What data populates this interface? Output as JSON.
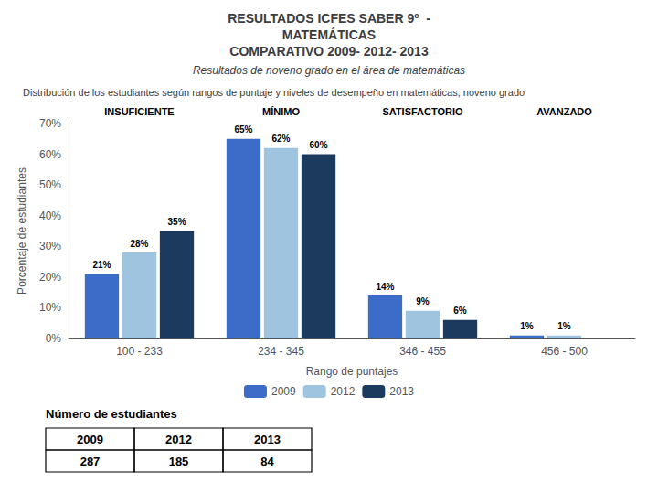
{
  "chart_data": {
    "type": "bar",
    "title": "RESULTADOS ICFES SABER 9º  -\nMATEMÁTICAS\nCOMPARATIVO 2009- 2012- 2013",
    "subtitle": "Resultados de noveno grado en el área de matemáticas",
    "annotations": [
      {
        "text": "Distribución de los estudiantes según rangos de puntaje y niveles de desempeño en matemáticas, noveno grado"
      },
      {
        "x": "100 - 233",
        "text": "INSUFICIENTE"
      },
      {
        "x": "234 - 345",
        "text": "MÍNIMO"
      },
      {
        "x": "346 - 455",
        "text": "SATISFACTORIO"
      },
      {
        "x": "456 - 500",
        "text": "AVANZADO"
      }
    ],
    "categories": [
      "100 - 233",
      "234 - 345",
      "346 - 455",
      "456 - 500"
    ],
    "series": [
      {
        "name": "2009",
        "color": "#3B6CC8",
        "values": [
          21,
          65,
          14,
          1
        ],
        "value_labels": [
          "21%",
          "65%",
          "14%",
          "1%"
        ]
      },
      {
        "name": "2012",
        "color": "#9EC4E0",
        "values": [
          28,
          62,
          9,
          1
        ],
        "value_labels": [
          "28%",
          "62%",
          "9%",
          "1%"
        ]
      },
      {
        "name": "2013",
        "color": "#1B3A5E",
        "values": [
          35,
          60,
          6,
          0
        ],
        "value_labels": [
          "35%",
          "60%",
          "6%",
          null
        ]
      }
    ],
    "xlabel": "Rango de puntajes",
    "ylabel": "Porcentaje de estudiantes",
    "ylim": [
      0,
      70
    ],
    "yticks": [
      {
        "value": 0,
        "label": "0%"
      },
      {
        "value": 10,
        "label": "10%"
      },
      {
        "value": 20,
        "label": "20%"
      },
      {
        "value": 30,
        "label": "30%"
      },
      {
        "value": 40,
        "label": "40%"
      },
      {
        "value": 50,
        "label": "50%"
      },
      {
        "value": 60,
        "label": "60%"
      },
      {
        "value": 70,
        "label": "70%"
      }
    ],
    "grid": false,
    "legend": "bottom",
    "data_labels": true,
    "table": {
      "title": "Número de estudiantes",
      "columns": [
        "2009",
        "2012",
        "2013"
      ],
      "values": [
        287,
        185,
        84
      ]
    }
  }
}
